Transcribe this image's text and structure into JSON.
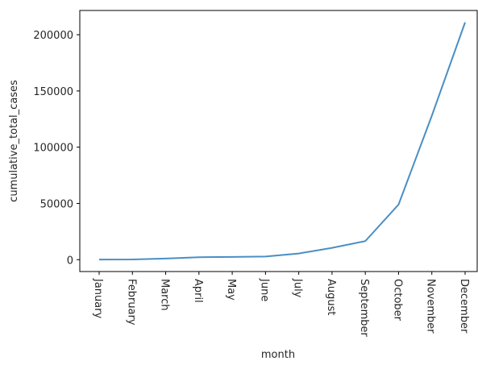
{
  "chart_data": {
    "type": "line",
    "title": "",
    "xlabel": "month",
    "ylabel": "cumulative_total_cases",
    "categories": [
      "January",
      "February",
      "March",
      "April",
      "May",
      "June",
      "July",
      "August",
      "September",
      "October",
      "November",
      "December"
    ],
    "values": [
      100,
      200,
      1000,
      2200,
      2400,
      2800,
      5500,
      10500,
      16500,
      49000,
      128000,
      211000
    ],
    "yticks": [
      0,
      50000,
      100000,
      150000,
      200000
    ],
    "ylim": [
      -10550,
      221550
    ],
    "grid": false,
    "line_color": "#4a8ec4"
  }
}
